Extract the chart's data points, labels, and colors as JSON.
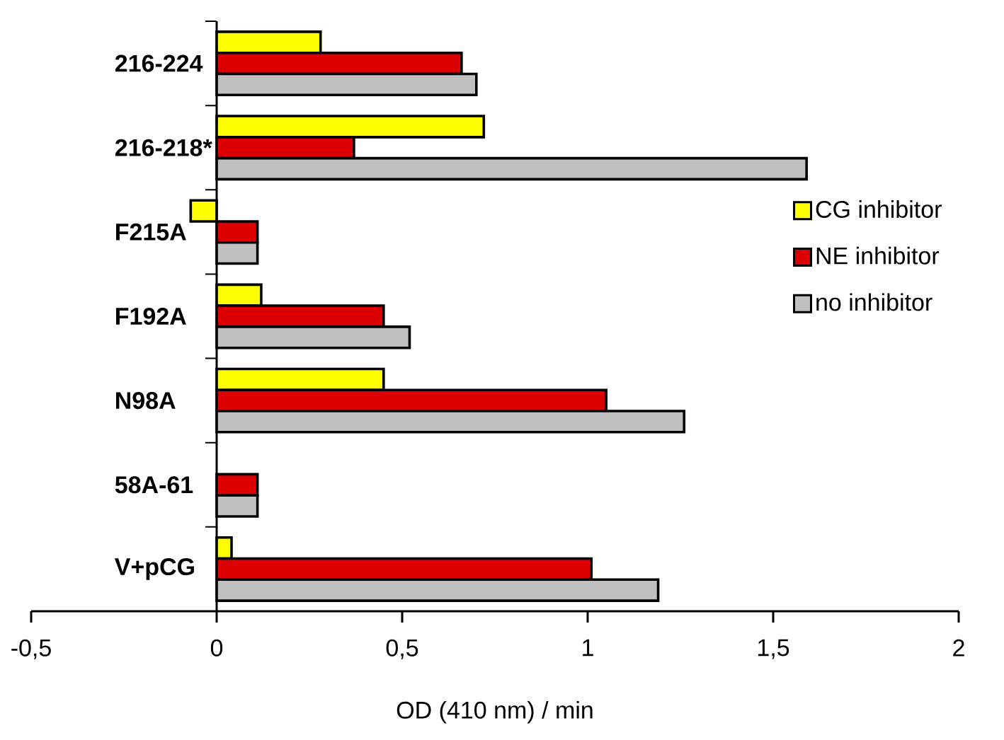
{
  "chart_data": {
    "type": "bar",
    "orientation": "horizontal",
    "xlabel": "OD (410 nm) / min",
    "categories": [
      "216-224",
      "216-218*",
      "F215A",
      "F192A",
      "N98A",
      "58A-61",
      "V+pCG"
    ],
    "series": [
      {
        "name": "CG inhibitor",
        "color": "#ffff00",
        "values": [
          0.28,
          0.72,
          -0.07,
          0.12,
          0.45,
          null,
          0.04
        ]
      },
      {
        "name": "NE inhibitor",
        "color": "#dd0000",
        "values": [
          0.66,
          0.37,
          0.11,
          0.45,
          1.05,
          0.11,
          1.01
        ]
      },
      {
        "name": "no inhibitor",
        "color": "#c0c0c0",
        "values": [
          0.7,
          1.59,
          0.11,
          0.52,
          1.26,
          0.11,
          1.19
        ]
      }
    ],
    "xlim": [
      -0.5,
      2
    ],
    "xticks": [
      {
        "value": -0.5,
        "label": "-0,5"
      },
      0,
      {
        "value": 0.5,
        "label": "0,5"
      },
      1,
      {
        "value": 1.5,
        "label": "1,5"
      },
      2
    ],
    "legend": "right"
  }
}
